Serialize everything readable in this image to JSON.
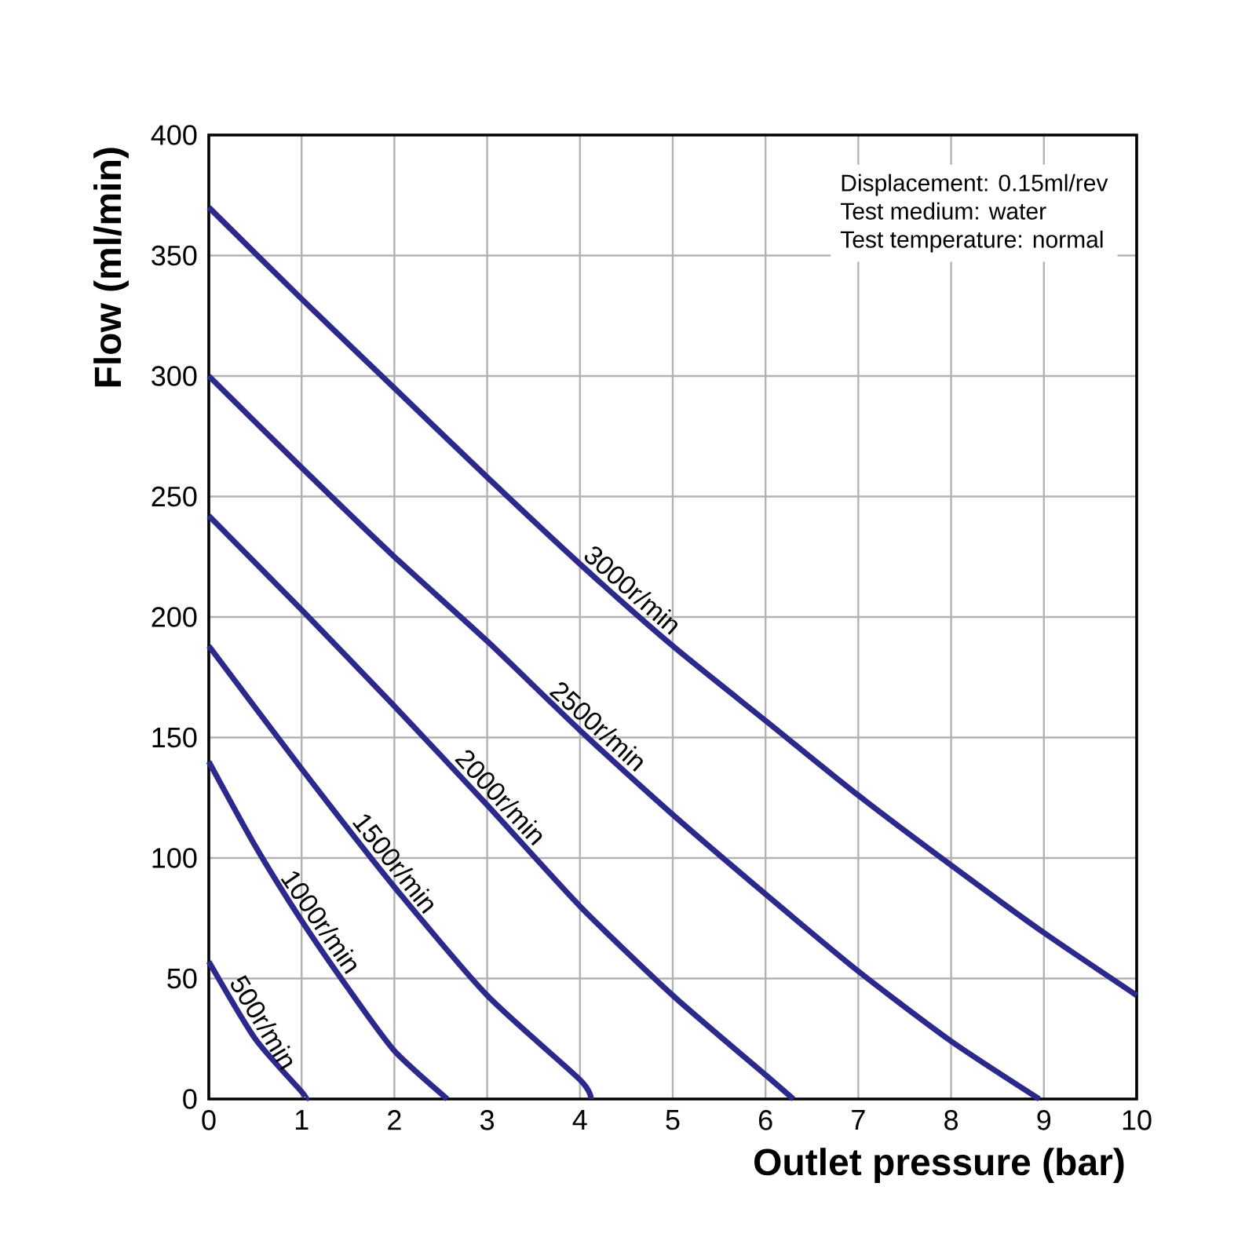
{
  "chart_data": {
    "type": "line",
    "xlabel": "Outlet pressure (bar)",
    "ylabel": "Flow (ml/min)",
    "annotations": [
      "Displacement: 0.15ml/rev",
      "Test medium: water",
      "Test temperature: normal"
    ],
    "xlim": [
      0,
      10
    ],
    "ylim": [
      0,
      400
    ],
    "xticks": [
      0,
      1,
      2,
      3,
      4,
      5,
      6,
      7,
      8,
      9,
      10
    ],
    "yticks": [
      0,
      50,
      100,
      150,
      200,
      250,
      300,
      350,
      400
    ],
    "grid": true,
    "marker": "none",
    "line_style": "solid",
    "series": [
      {
        "name": "3000r/min",
        "color": "#2b2a8c",
        "x": [
          0,
          1,
          2,
          3,
          4,
          5,
          6,
          7,
          8,
          9,
          10
        ],
        "values": [
          370,
          332,
          295,
          258,
          222,
          188,
          157,
          126,
          97,
          69,
          43
        ]
      },
      {
        "name": "2500r/min",
        "color": "#2b2a8c",
        "x": [
          0,
          1,
          2,
          3,
          4,
          5,
          6,
          7,
          8,
          8.95
        ],
        "values": [
          300,
          262,
          225,
          190,
          153,
          118,
          85,
          53,
          24,
          0
        ]
      },
      {
        "name": "2000r/min",
        "color": "#2b2a8c",
        "x": [
          0,
          1,
          2,
          3,
          4,
          5,
          6,
          6.3
        ],
        "values": [
          242,
          203,
          163,
          122,
          80,
          43,
          10,
          0
        ]
      },
      {
        "name": "1500r/min",
        "color": "#2b2a8c",
        "x": [
          0,
          1,
          2,
          3,
          4,
          4.12
        ],
        "values": [
          188,
          137,
          88,
          43,
          8,
          0
        ]
      },
      {
        "name": "1000r/min",
        "color": "#2b2a8c",
        "x": [
          0,
          0.5,
          1,
          1.5,
          2,
          2.57
        ],
        "values": [
          140,
          105,
          74,
          46,
          20,
          0
        ]
      },
      {
        "name": "500r/min",
        "color": "#2b2a8c",
        "x": [
          0,
          0.5,
          1,
          1.05
        ],
        "values": [
          57,
          25,
          3,
          0
        ]
      }
    ]
  }
}
